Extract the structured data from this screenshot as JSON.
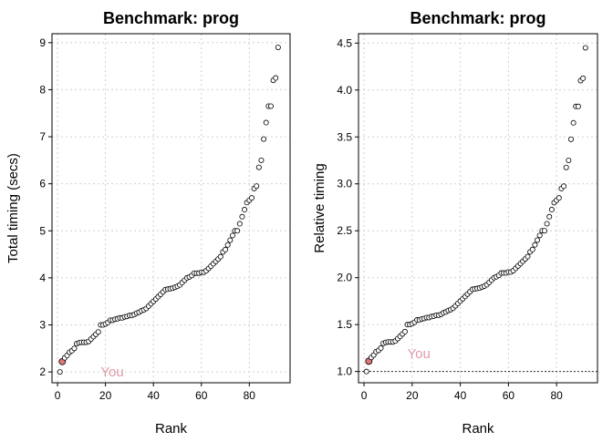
{
  "chart_data": [
    {
      "type": "scatter",
      "title": "Benchmark: prog",
      "x_label": "Rank",
      "y_label": "Total timing (secs)",
      "x": [
        1,
        2,
        3,
        4,
        5,
        6,
        7,
        8,
        9,
        10,
        11,
        12,
        13,
        14,
        15,
        16,
        17,
        18,
        19,
        20,
        21,
        22,
        23,
        24,
        25,
        26,
        27,
        28,
        29,
        30,
        31,
        32,
        33,
        34,
        35,
        36,
        37,
        38,
        39,
        40,
        41,
        42,
        43,
        44,
        45,
        46,
        47,
        48,
        49,
        50,
        51,
        52,
        53,
        54,
        55,
        56,
        57,
        58,
        59,
        60,
        61,
        62,
        63,
        64,
        65,
        66,
        67,
        68,
        69,
        70,
        71,
        72,
        73,
        74,
        75,
        76,
        77,
        78,
        79,
        80,
        81,
        82,
        83,
        84,
        85,
        86,
        87,
        88,
        89,
        90,
        91,
        92
      ],
      "values": [
        2.0,
        2.22,
        2.3,
        2.35,
        2.42,
        2.45,
        2.5,
        2.6,
        2.62,
        2.63,
        2.63,
        2.63,
        2.65,
        2.7,
        2.75,
        2.8,
        2.85,
        3.0,
        3.0,
        3.02,
        3.05,
        3.1,
        3.1,
        3.12,
        3.13,
        3.15,
        3.15,
        3.17,
        3.18,
        3.2,
        3.2,
        3.22,
        3.25,
        3.27,
        3.3,
        3.32,
        3.35,
        3.4,
        3.45,
        3.5,
        3.55,
        3.6,
        3.65,
        3.7,
        3.75,
        3.76,
        3.77,
        3.78,
        3.8,
        3.82,
        3.85,
        3.9,
        3.95,
        4.0,
        4.02,
        4.05,
        4.1,
        4.1,
        4.1,
        4.12,
        4.12,
        4.15,
        4.2,
        4.25,
        4.3,
        4.35,
        4.4,
        4.45,
        4.55,
        4.6,
        4.7,
        4.8,
        4.9,
        5.0,
        5.0,
        5.15,
        5.3,
        5.45,
        5.6,
        5.65,
        5.7,
        5.9,
        5.95,
        6.35,
        6.5,
        6.95,
        7.3,
        7.65,
        7.65,
        8.2,
        8.25,
        8.9
      ],
      "highlight_index": 1,
      "highlight_color": "#e07a7a",
      "annotation": {
        "text": "You",
        "x": 18,
        "y": 2.0,
        "color": "#e09aa6"
      },
      "xlim": [
        -2.3,
        97
      ],
      "ylim": [
        1.77,
        9.19
      ],
      "xticks": [
        0,
        20,
        40,
        60,
        80
      ],
      "yticks": [
        2,
        3,
        4,
        5,
        6,
        7,
        8,
        9
      ],
      "grid": true
    },
    {
      "type": "scatter",
      "title": "Benchmark: prog",
      "x_label": "Rank",
      "y_label": "Relative timing",
      "x": [
        1,
        2,
        3,
        4,
        5,
        6,
        7,
        8,
        9,
        10,
        11,
        12,
        13,
        14,
        15,
        16,
        17,
        18,
        19,
        20,
        21,
        22,
        23,
        24,
        25,
        26,
        27,
        28,
        29,
        30,
        31,
        32,
        33,
        34,
        35,
        36,
        37,
        38,
        39,
        40,
        41,
        42,
        43,
        44,
        45,
        46,
        47,
        48,
        49,
        50,
        51,
        52,
        53,
        54,
        55,
        56,
        57,
        58,
        59,
        60,
        61,
        62,
        63,
        64,
        65,
        66,
        67,
        68,
        69,
        70,
        71,
        72,
        73,
        74,
        75,
        76,
        77,
        78,
        79,
        80,
        81,
        82,
        83,
        84,
        85,
        86,
        87,
        88,
        89,
        90,
        91,
        92
      ],
      "values": [
        1.0,
        1.11,
        1.15,
        1.175,
        1.21,
        1.225,
        1.25,
        1.3,
        1.31,
        1.315,
        1.315,
        1.315,
        1.325,
        1.35,
        1.375,
        1.4,
        1.425,
        1.5,
        1.5,
        1.51,
        1.525,
        1.55,
        1.55,
        1.56,
        1.565,
        1.575,
        1.575,
        1.585,
        1.59,
        1.6,
        1.6,
        1.61,
        1.625,
        1.635,
        1.65,
        1.66,
        1.675,
        1.7,
        1.725,
        1.75,
        1.775,
        1.8,
        1.825,
        1.85,
        1.875,
        1.88,
        1.885,
        1.89,
        1.9,
        1.91,
        1.925,
        1.95,
        1.975,
        2.0,
        2.01,
        2.025,
        2.05,
        2.05,
        2.05,
        2.06,
        2.06,
        2.075,
        2.1,
        2.125,
        2.15,
        2.175,
        2.2,
        2.225,
        2.275,
        2.3,
        2.35,
        2.4,
        2.45,
        2.5,
        2.5,
        2.575,
        2.65,
        2.725,
        2.8,
        2.825,
        2.85,
        2.95,
        2.975,
        3.175,
        3.25,
        3.475,
        3.65,
        3.825,
        3.825,
        4.1,
        4.125,
        4.45
      ],
      "highlight_index": 1,
      "highlight_color": "#e07a7a",
      "annotation": {
        "text": "You",
        "x": 18,
        "y": 1.19,
        "color": "#e09aa6"
      },
      "hline": 1,
      "xlim": [
        -2.3,
        97
      ],
      "ylim": [
        0.88,
        4.6
      ],
      "xticks": [
        0,
        20,
        40,
        60,
        80
      ],
      "yticks": [
        {
          "value": 1,
          "label": "1.0"
        },
        1.5,
        {
          "value": 2,
          "label": "2.0"
        },
        2.5,
        {
          "value": 3,
          "label": "3.0"
        },
        3.5,
        {
          "value": 4,
          "label": "4.0"
        },
        4.5
      ],
      "grid": true
    }
  ]
}
